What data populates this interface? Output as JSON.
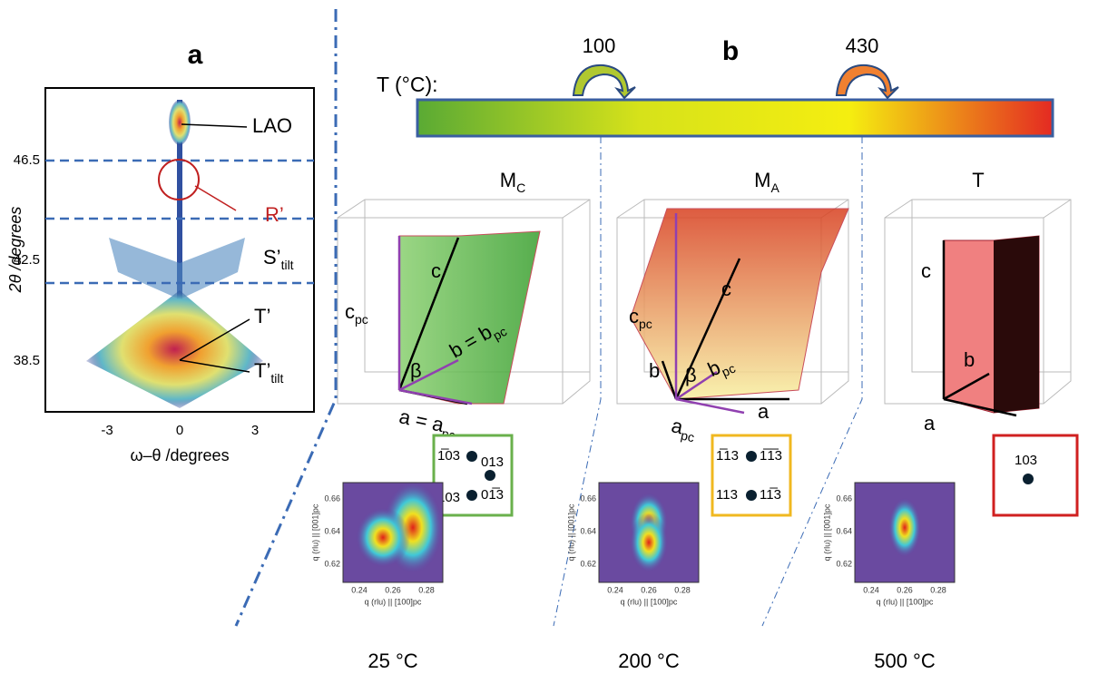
{
  "panel_a": {
    "label": "a",
    "y_axis_label": "2θ /degrees",
    "x_axis_label": "ω–θ /degrees",
    "yticks": [
      "46.5",
      "42.5",
      "38.5"
    ],
    "xticks": [
      "-3",
      "0",
      "3"
    ],
    "annotations": {
      "lao": "LAO",
      "r_prime": "R’",
      "s_tilt": {
        "base": "S’",
        "sub": "tilt"
      },
      "t_prime": "T’",
      "t_tilt": {
        "base": "T’",
        "sub": "tilt"
      }
    }
  },
  "panel_b": {
    "label": "b",
    "temperature_label": "T (°C):",
    "transitions": [
      "100",
      "430"
    ],
    "phases": [
      {
        "base": "M",
        "sub": "C"
      },
      {
        "base": "M",
        "sub": "A"
      },
      {
        "base": "T",
        "sub": ""
      }
    ],
    "cell_labels": {
      "mc": {
        "c": "c",
        "cpc": {
          "base": "c",
          "sub": "pc"
        },
        "b": {
          "base": "b = b",
          "sub": "pc"
        },
        "beta": "β",
        "a": {
          "base": "a = a",
          "sub": "pc"
        }
      },
      "ma": {
        "c": "c",
        "cpc": {
          "base": "c",
          "sub": "pc"
        },
        "b": "b",
        "bpc": {
          "base": "b",
          "sub": "pc"
        },
        "beta": "β",
        "apc": {
          "base": "a",
          "sub": "pc"
        },
        "a": "a"
      },
      "t": {
        "c": "c",
        "b": "b",
        "a": "a"
      }
    },
    "reflections": [
      [
        "1̅03",
        "013",
        "103",
        "01̅3"
      ],
      [
        "1̅13",
        "1̅1̅3",
        "113",
        "11̅3"
      ],
      [
        "103"
      ]
    ],
    "maps": {
      "y_axis_label": "q (rlu) || [001]pc",
      "x_axis_label": "q (rlu) || [100]pc",
      "yticks": [
        "0.66",
        "0.64",
        "0.62"
      ],
      "xticks": [
        "0.24",
        "0.26",
        "0.28"
      ],
      "temperatures": [
        "25 °C",
        "200 °C",
        "500 °C"
      ]
    }
  }
}
